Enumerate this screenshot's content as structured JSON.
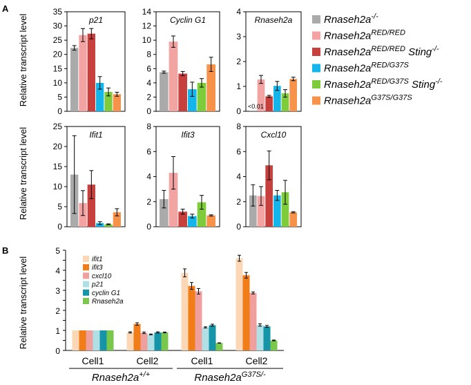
{
  "panel_a_label": "A",
  "panel_b_label": "B",
  "a_ylabel": "Relative transcript level",
  "b_ylabel": "Relative transcript level",
  "a_annotation": "<0.01",
  "colors": {
    "Rnaseh2a-/-": "#aaaaaa",
    "Rnaseh2a RED/RED": "#f4a3a3",
    "Rnaseh2a RED/RED Sting-/-": "#c8403e",
    "Rnaseh2a RED/G37S": "#13b5ea",
    "Rnaseh2a RED/G37S Sting-/-": "#7ecb3c",
    "Rnaseh2a G37S/G37S": "#f7924a",
    "ifit1": "#fbd7b5",
    "ifit3": "#f07d18",
    "cxcl10": "#f0a09c",
    "p21": "#b0dfe6",
    "cyclin G1": "#1694a8",
    "Rnaseh2a": "#79c74b"
  },
  "legend_a": [
    {
      "base": "Rnaseh2a",
      "sup": "-/-",
      "mid": "",
      "sup2": ""
    },
    {
      "base": "Rnaseh2a",
      "sup": "RED/RED",
      "mid": "",
      "sup2": ""
    },
    {
      "base": "Rnaseh2a",
      "sup": "RED/RED",
      "mid": " Sting",
      "sup2": "-/-"
    },
    {
      "base": "Rnaseh2a",
      "sup": "RED/G37S",
      "mid": "",
      "sup2": ""
    },
    {
      "base": "Rnaseh2a",
      "sup": "RED/G37S",
      "mid": " Sting",
      "sup2": "-/-"
    },
    {
      "base": "Rnaseh2a",
      "sup": "G37S/G37S",
      "mid": "",
      "sup2": ""
    }
  ],
  "legend_b": [
    "ifit1",
    "ifit3",
    "cxcl10",
    "p21",
    "cyclin G1",
    "Rnaseh2a"
  ],
  "group_b": [
    {
      "base": "Rnaseh2a",
      "sup": "+/+"
    },
    {
      "base": "Rnaseh2a",
      "sup": "G37S/-"
    }
  ],
  "chart_data": [
    {
      "type": "bar",
      "title": "p21",
      "ylim": [
        0,
        35
      ],
      "yticks": [
        0,
        5,
        10,
        15,
        20,
        25,
        30,
        35
      ],
      "values": [
        22.3,
        26.8,
        27.3,
        10.0,
        6.8,
        6.0
      ],
      "errors": [
        0.8,
        2.3,
        1.8,
        2.2,
        1.4,
        0.7
      ]
    },
    {
      "type": "bar",
      "title": "Cyclin G1",
      "ylim": [
        0,
        14
      ],
      "yticks": [
        0,
        2,
        4,
        6,
        8,
        10,
        12,
        14
      ],
      "values": [
        5.5,
        9.8,
        5.3,
        3.1,
        4.0,
        6.6
      ],
      "errors": [
        0.15,
        0.8,
        0.3,
        1.0,
        0.6,
        1.0
      ]
    },
    {
      "type": "bar",
      "title": "Rnaseh2a",
      "ylim": [
        0,
        4
      ],
      "yticks": [
        0,
        1,
        2,
        3,
        4
      ],
      "values": [
        0.005,
        1.28,
        0.6,
        1.02,
        0.72,
        1.3
      ],
      "errors": [
        0,
        0.16,
        0.04,
        0.18,
        0.15,
        0.07
      ]
    },
    {
      "type": "bar",
      "title": "Ifit1",
      "ylim": [
        0,
        25
      ],
      "yticks": [
        0,
        5,
        10,
        15,
        20,
        25
      ],
      "values": [
        13.0,
        5.9,
        10.5,
        0.9,
        0.6,
        3.6
      ],
      "errors": [
        9.7,
        3.1,
        3.5,
        0.35,
        0.1,
        0.9
      ]
    },
    {
      "type": "bar",
      "title": "Ifit3",
      "ylim": [
        0,
        8
      ],
      "yticks": [
        0,
        2,
        4,
        6,
        8
      ],
      "values": [
        2.2,
        4.3,
        1.2,
        0.85,
        1.95,
        0.9
      ],
      "errors": [
        0.7,
        1.3,
        0.2,
        0.15,
        0.55,
        0.05
      ]
    },
    {
      "type": "bar",
      "title": "Cxcl10",
      "ylim": [
        0,
        8
      ],
      "yticks": [
        0,
        2,
        4,
        6,
        8
      ],
      "values": [
        2.5,
        2.45,
        4.9,
        2.5,
        2.75,
        1.15
      ],
      "errors": [
        0.85,
        0.75,
        1.15,
        0.4,
        0.95,
        0.05
      ]
    },
    {
      "type": "bar",
      "title": "",
      "ylim": [
        0,
        5
      ],
      "yticks": [
        0,
        0.5,
        1,
        1.5,
        2,
        2.5,
        3,
        3.5,
        4,
        4.5,
        5
      ],
      "categories": [
        "Cell1",
        "Cell2",
        "Cell1",
        "Cell2"
      ],
      "series": [
        {
          "name": "ifit1",
          "values": [
            1,
            0.9,
            3.87,
            4.6
          ],
          "errors": [
            0,
            0.03,
            0.2,
            0.15
          ]
        },
        {
          "name": "ifit3",
          "values": [
            1,
            1.32,
            3.22,
            3.75
          ],
          "errors": [
            0,
            0.06,
            0.17,
            0.14
          ]
        },
        {
          "name": "cxcl10",
          "values": [
            1,
            0.88,
            2.95,
            2.87
          ],
          "errors": [
            0,
            0.04,
            0.14,
            0.05
          ]
        },
        {
          "name": "p21",
          "values": [
            1,
            0.8,
            1.15,
            1.27
          ],
          "errors": [
            0,
            0.02,
            0.03,
            0.06
          ]
        },
        {
          "name": "cyclin G1",
          "values": [
            1,
            0.9,
            1.26,
            1.2
          ],
          "errors": [
            0,
            0.03,
            0.05,
            0.05
          ]
        },
        {
          "name": "Rnaseh2a",
          "values": [
            1,
            0.9,
            0.37,
            0.5
          ],
          "errors": [
            0,
            0.02,
            0.01,
            0.02
          ]
        }
      ]
    }
  ]
}
